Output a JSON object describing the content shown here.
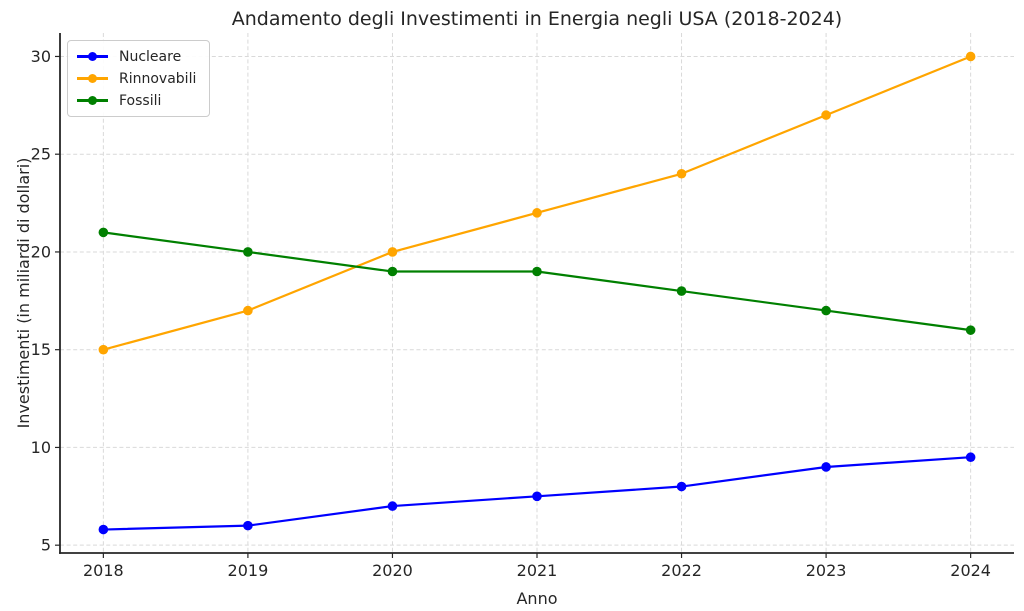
{
  "chart_data": {
    "type": "line",
    "title": "Andamento degli Investimenti in Energia negli USA (2018-2024)",
    "xlabel": "Anno",
    "ylabel": "Investimenti (in miliardi di dollari)",
    "x": [
      2018,
      2019,
      2020,
      2021,
      2022,
      2023,
      2024
    ],
    "x_tick_labels": [
      "2018",
      "2019",
      "2020",
      "2021",
      "2022",
      "2023",
      "2024"
    ],
    "y_ticks": [
      5,
      10,
      15,
      20,
      25,
      30
    ],
    "y_tick_labels": [
      "5",
      "10",
      "15",
      "20",
      "25",
      "30"
    ],
    "xlim": [
      2017.7,
      2024.3
    ],
    "ylim": [
      4.6,
      31.2
    ],
    "grid": true,
    "grid_style": "dashed",
    "legend_position": "upper-left",
    "series": [
      {
        "name": "Nucleare",
        "color": "#0000ff",
        "values": [
          5.8,
          6,
          7,
          7.5,
          8,
          9,
          9.5
        ]
      },
      {
        "name": "Rinnovabili",
        "color": "#ffa500",
        "values": [
          15,
          17,
          20,
          22,
          24,
          27,
          30
        ]
      },
      {
        "name": "Fossili",
        "color": "#008000",
        "values": [
          21,
          20,
          19,
          19,
          18,
          17,
          16
        ]
      }
    ],
    "colors": {
      "nucleare": "#0000ff",
      "rinnovabili": "#ffa500",
      "fossili": "#008000"
    }
  }
}
